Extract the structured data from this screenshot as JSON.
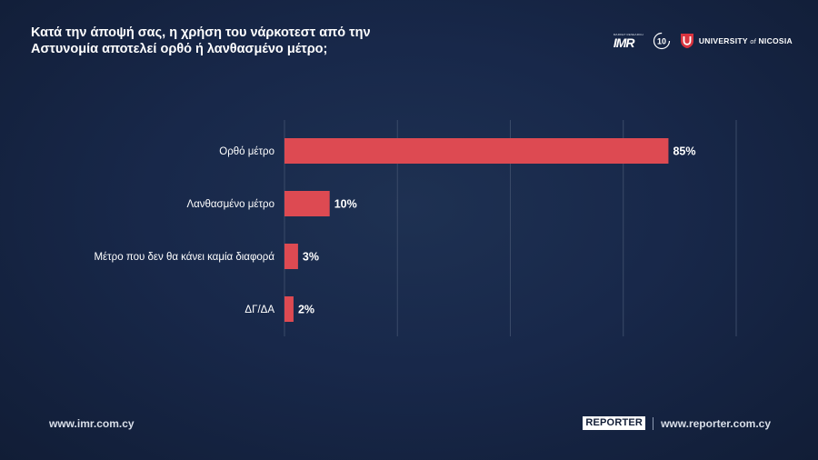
{
  "title_lines": [
    "Κατά την άποψή σας, η χρήση του νάρκοτεστ από την",
    "Αστυνομία αποτελεί ορθό ή λανθασμένο μέτρο;"
  ],
  "logos": {
    "imr_small": "MARKET RESEARCH",
    "imr": "IMR",
    "ten": "10",
    "unic_name": "UNIVERSITY",
    "unic_of": "of",
    "unic_city": "NICOSIA"
  },
  "colors": {
    "bar": "#dd4a52",
    "grid": "#3a4a68",
    "background": "#18284a"
  },
  "chart_data": {
    "type": "bar",
    "orientation": "horizontal",
    "title": "",
    "xlabel": "",
    "ylabel": "",
    "xlim": [
      0,
      100
    ],
    "grid": true,
    "categories": [
      "Ορθό μέτρο",
      "Λανθασμένο μέτρο",
      "Μέτρο που δεν θα κάνει καμία διαφορά",
      "ΔΓ/ΔΑ"
    ],
    "values": [
      85,
      10,
      3,
      2
    ],
    "value_labels": [
      "85%",
      "10%",
      "3%",
      "2%"
    ]
  },
  "footer": {
    "left_url": "www.imr.com.cy",
    "reporter_logo": "REPORTER",
    "right_url": "www.reporter.com.cy"
  }
}
